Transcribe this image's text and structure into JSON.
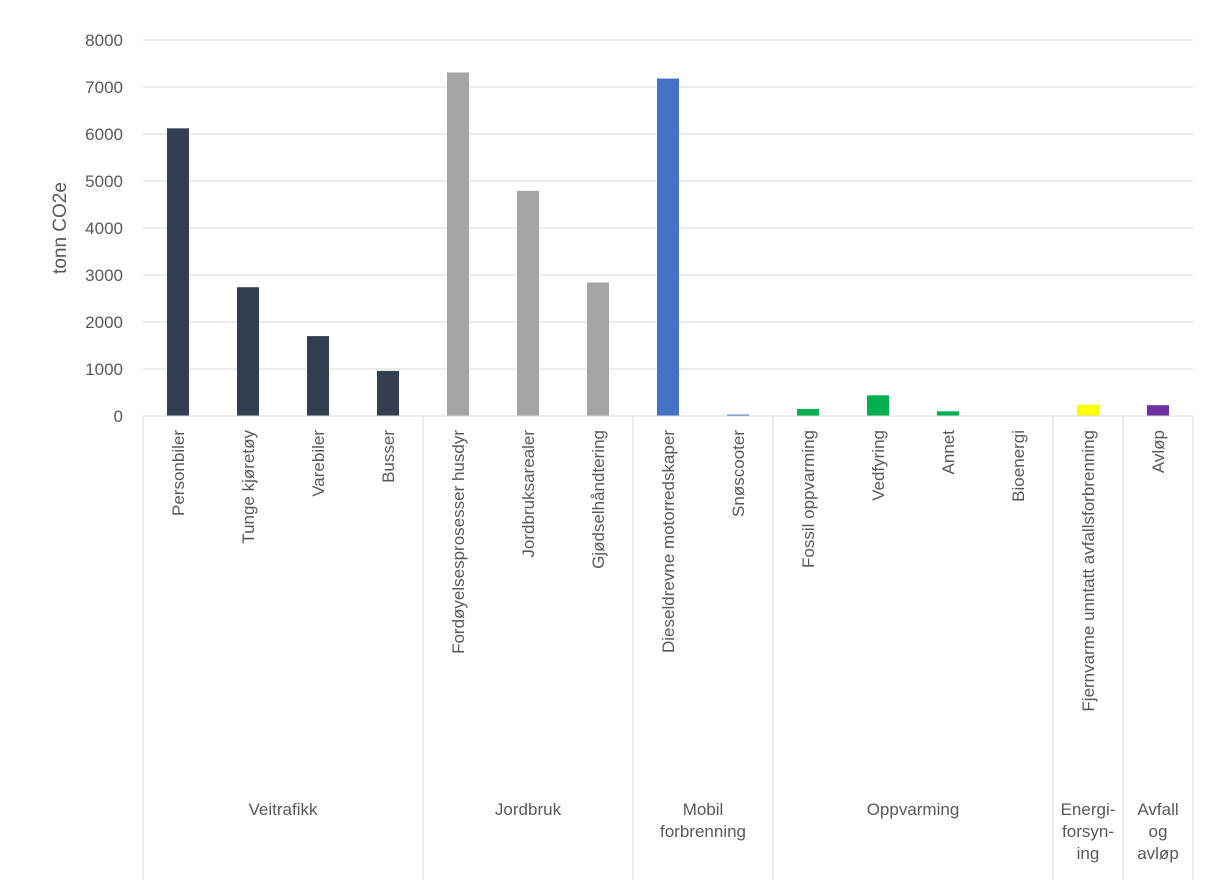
{
  "chart_data": {
    "type": "bar",
    "ylabel": "tonn CO2e",
    "xlabel": "",
    "ylim": [
      0,
      8000
    ],
    "yticks": [
      0,
      1000,
      2000,
      3000,
      4000,
      5000,
      6000,
      7000,
      8000
    ],
    "grid": true,
    "categories": [
      "Personbiler",
      "Tunge kjøretøy",
      "Varebiler",
      "Busser",
      "Fordøyelsesprosesser husdyr",
      "Jordbruksarealer",
      "Gjødselhåndtering",
      "Dieseldrevne motorredskaper",
      "Snøscooter",
      "Fossil oppvarming",
      "Vedfyring",
      "Annet",
      "Bioenergi",
      "Fjernvarme unntatt avfallsforbrenning",
      "Avløp"
    ],
    "values": [
      6120,
      2740,
      1700,
      960,
      7310,
      4790,
      2840,
      7180,
      30,
      150,
      440,
      100,
      0,
      240,
      230
    ],
    "bar_colors": [
      "#333f50",
      "#333f50",
      "#333f50",
      "#333f50",
      "#a5a5a5",
      "#a5a5a5",
      "#a5a5a5",
      "#4472c4",
      "#4472c4",
      "#00b050",
      "#00b050",
      "#00b050",
      "#00b050",
      "#ffff00",
      "#7030a0"
    ],
    "groups": [
      {
        "label": [
          "Veitrafikk"
        ],
        "count": 4
      },
      {
        "label": [
          "Jordbruk"
        ],
        "count": 3
      },
      {
        "label": [
          "Mobil",
          "forbrenning"
        ],
        "count": 2
      },
      {
        "label": [
          "Oppvarming"
        ],
        "count": 4
      },
      {
        "label": [
          "Energi-",
          "forsyn-",
          "ing"
        ],
        "count": 1
      },
      {
        "label": [
          "Avfall",
          "og",
          "avløp"
        ],
        "count": 1
      }
    ],
    "colors": {
      "axis": "#d9d9d9",
      "grid": "#d9d9d9",
      "text": "#595959"
    }
  }
}
